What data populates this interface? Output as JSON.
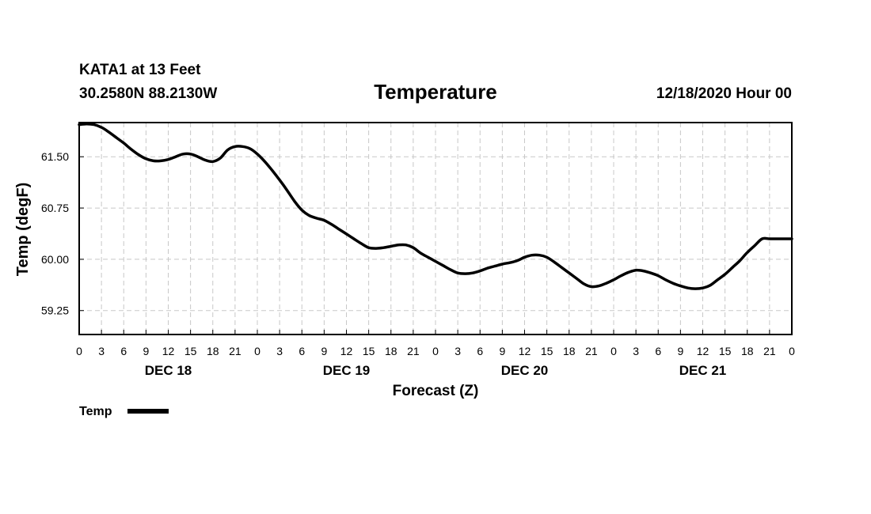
{
  "header": {
    "station": "KATA1 at 13 Feet",
    "location": "30.2580N 88.2130W",
    "title": "Temperature",
    "issued": "12/18/2020 Hour 00"
  },
  "chart_data": {
    "type": "line",
    "title": "Temperature",
    "xlabel": "Forecast (Z)",
    "ylabel": "Temp (degF)",
    "xlim": [
      0,
      96
    ],
    "ylim": [
      58.9,
      62.0
    ],
    "grid": true,
    "x_ticks": [
      0,
      3,
      6,
      9,
      12,
      15,
      18,
      21,
      24,
      27,
      30,
      33,
      36,
      39,
      42,
      45,
      48,
      51,
      54,
      57,
      60,
      63,
      66,
      69,
      72,
      75,
      78,
      81,
      84,
      87,
      90,
      93,
      96
    ],
    "x_tick_labels": [
      "0",
      "3",
      "6",
      "9",
      "12",
      "15",
      "18",
      "21",
      "0",
      "3",
      "6",
      "9",
      "12",
      "15",
      "18",
      "21",
      "0",
      "3",
      "6",
      "9",
      "12",
      "15",
      "18",
      "21",
      "0",
      "3",
      "6",
      "9",
      "12",
      "15",
      "18",
      "21",
      "0"
    ],
    "day_labels": [
      {
        "label": "DEC 18",
        "x": 12
      },
      {
        "label": "DEC 19",
        "x": 36
      },
      {
        "label": "DEC 20",
        "x": 60
      },
      {
        "label": "DEC 21",
        "x": 84
      }
    ],
    "y_ticks": [
      59.25,
      60.0,
      60.75,
      61.5
    ],
    "y_tick_labels": [
      "59.25",
      "60.00",
      "60.75",
      "61.50"
    ],
    "legend": "bottom-left",
    "series": [
      {
        "name": "Temp",
        "color": "#000000",
        "x": [
          0,
          1,
          2,
          3,
          4,
          5,
          6,
          7,
          8,
          9,
          10,
          11,
          12,
          13,
          14,
          15,
          16,
          17,
          18,
          19,
          20,
          21,
          22,
          23,
          24,
          25,
          26,
          27,
          28,
          29,
          30,
          31,
          32,
          33,
          34,
          35,
          36,
          37,
          38,
          39,
          40,
          41,
          42,
          43,
          44,
          45,
          46,
          47,
          48,
          49,
          50,
          51,
          52,
          53,
          54,
          55,
          56,
          57,
          58,
          59,
          60,
          61,
          62,
          63,
          64,
          65,
          66,
          67,
          68,
          69,
          70,
          71,
          72,
          73,
          74,
          75,
          76,
          77,
          78,
          79,
          80,
          81,
          82,
          83,
          84,
          85,
          86,
          87,
          88,
          89,
          90,
          91,
          92,
          93,
          94,
          95,
          96
        ],
        "values": [
          61.97,
          61.98,
          61.97,
          61.93,
          61.86,
          61.78,
          61.7,
          61.61,
          61.53,
          61.47,
          61.44,
          61.44,
          61.46,
          61.5,
          61.54,
          61.54,
          61.5,
          61.45,
          61.43,
          61.48,
          61.6,
          61.65,
          61.65,
          61.62,
          61.54,
          61.43,
          61.3,
          61.16,
          61.01,
          60.85,
          60.72,
          60.64,
          60.6,
          60.57,
          60.51,
          60.44,
          60.37,
          60.3,
          60.23,
          60.17,
          60.16,
          60.17,
          60.19,
          60.21,
          60.21,
          60.17,
          60.09,
          60.03,
          59.97,
          59.91,
          59.85,
          59.8,
          59.79,
          59.8,
          59.83,
          59.87,
          59.9,
          59.93,
          59.95,
          59.98,
          60.03,
          60.06,
          60.06,
          60.03,
          59.96,
          59.88,
          59.8,
          59.72,
          59.64,
          59.6,
          59.61,
          59.65,
          59.7,
          59.76,
          59.81,
          59.84,
          59.83,
          59.8,
          59.76,
          59.7,
          59.65,
          59.61,
          59.58,
          59.57,
          59.58,
          59.62,
          59.7,
          59.78,
          59.88,
          59.98,
          60.1,
          60.2,
          60.3,
          60.3,
          60.3,
          60.3,
          60.3
        ]
      }
    ]
  }
}
